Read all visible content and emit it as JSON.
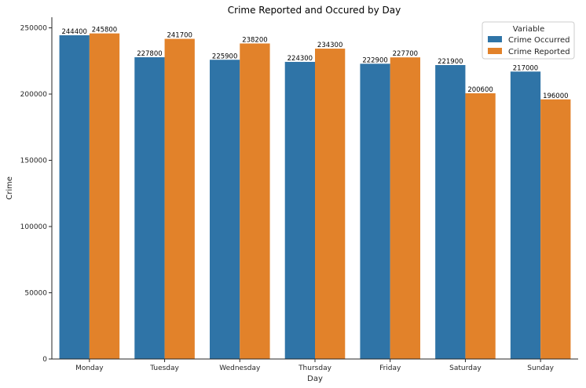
{
  "chart_data": {
    "type": "bar",
    "title": "Crime Reported and Occured by Day",
    "xlabel": "Day",
    "ylabel": "Crime",
    "categories": [
      "Monday",
      "Tuesday",
      "Wednesday",
      "Thursday",
      "Friday",
      "Saturday",
      "Sunday"
    ],
    "series": [
      {
        "name": "Crime Occurred",
        "color": "#2f74a7",
        "values": [
          244400,
          227800,
          225900,
          224300,
          222900,
          221900,
          217000
        ]
      },
      {
        "name": "Crime Reported",
        "color": "#e2822a",
        "values": [
          245800,
          241700,
          238200,
          234300,
          227700,
          200600,
          196000
        ]
      }
    ],
    "ylim": [
      0,
      258000
    ],
    "yticks": [
      0,
      50000,
      100000,
      150000,
      200000,
      250000
    ],
    "legend": {
      "title": "Variable",
      "placement": "top-right"
    },
    "grid": false
  }
}
